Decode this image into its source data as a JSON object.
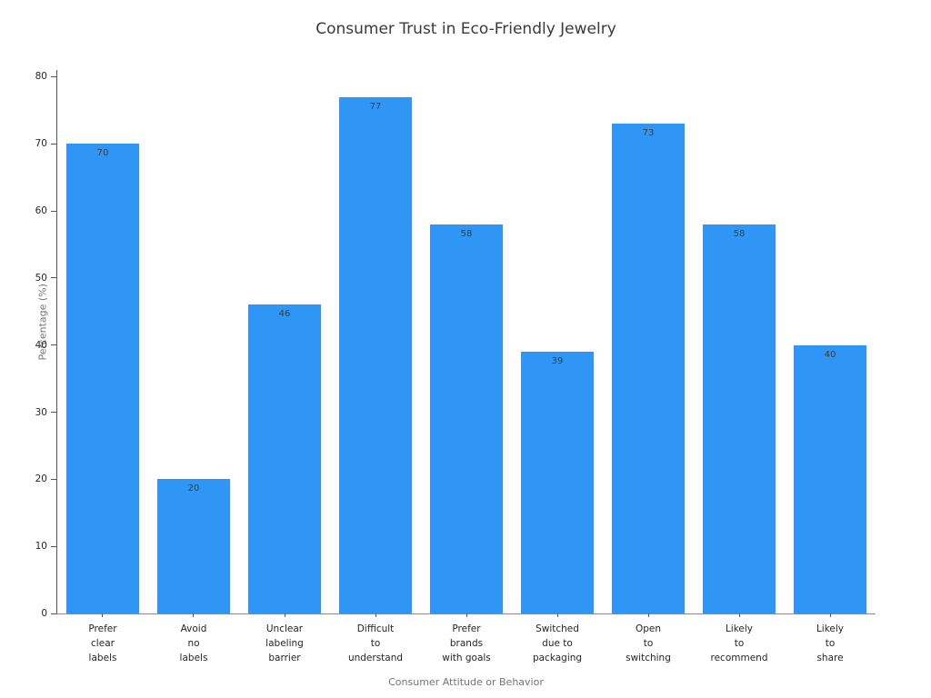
{
  "chart_data": {
    "type": "bar",
    "title": "Consumer Trust in Eco-Friendly Jewelry",
    "xlabel": "Consumer Attitude or Behavior",
    "ylabel": "Percentage (%)",
    "categories": [
      [
        "Prefer",
        "clear",
        "labels"
      ],
      [
        "Avoid",
        "no",
        "labels"
      ],
      [
        "Unclear",
        "labeling",
        "barrier"
      ],
      [
        "Difficult",
        "to",
        "understand"
      ],
      [
        "Prefer",
        "brands",
        "with goals"
      ],
      [
        "Switched",
        "due to",
        "packaging"
      ],
      [
        "Open",
        "to",
        "switching"
      ],
      [
        "Likely",
        "to",
        "recommend"
      ],
      [
        "Likely",
        "to",
        "share"
      ]
    ],
    "values": [
      70,
      20,
      46,
      77,
      58,
      39,
      73,
      58,
      40
    ],
    "yticks": [
      0,
      10,
      20,
      30,
      40,
      50,
      60,
      70,
      80
    ],
    "ylim": [
      0,
      81
    ],
    "grid": false,
    "legend": "none",
    "bar_color": "#2f96f6",
    "value_label_color": "#3d3d3d"
  }
}
